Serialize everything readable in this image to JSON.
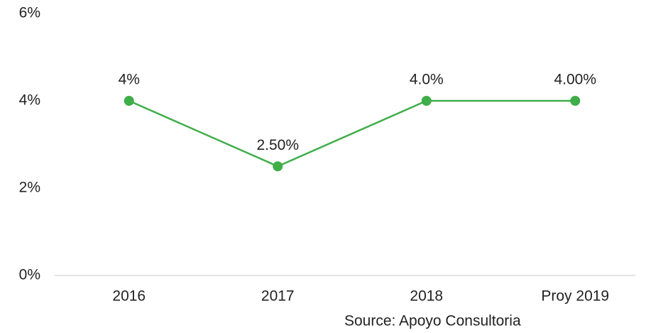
{
  "chart_data": {
    "type": "line",
    "categories": [
      "2016",
      "2017",
      "2018",
      "Proy 2019"
    ],
    "series": [
      {
        "name": null,
        "color": "#3fae49",
        "values": [
          4,
          2.5,
          4,
          4
        ],
        "value_labels": [
          "4%",
          "2.50%",
          "4.0%",
          "4.00%"
        ]
      }
    ],
    "ylim": [
      0,
      6
    ],
    "yticks": [
      {
        "value": 0,
        "label": "0%"
      },
      {
        "value": 2,
        "label": "2%"
      },
      {
        "value": 4,
        "label": "4%"
      },
      {
        "value": 6,
        "label": "6%"
      }
    ],
    "grid": false,
    "source": "Source: Apoyo Consultoria"
  }
}
